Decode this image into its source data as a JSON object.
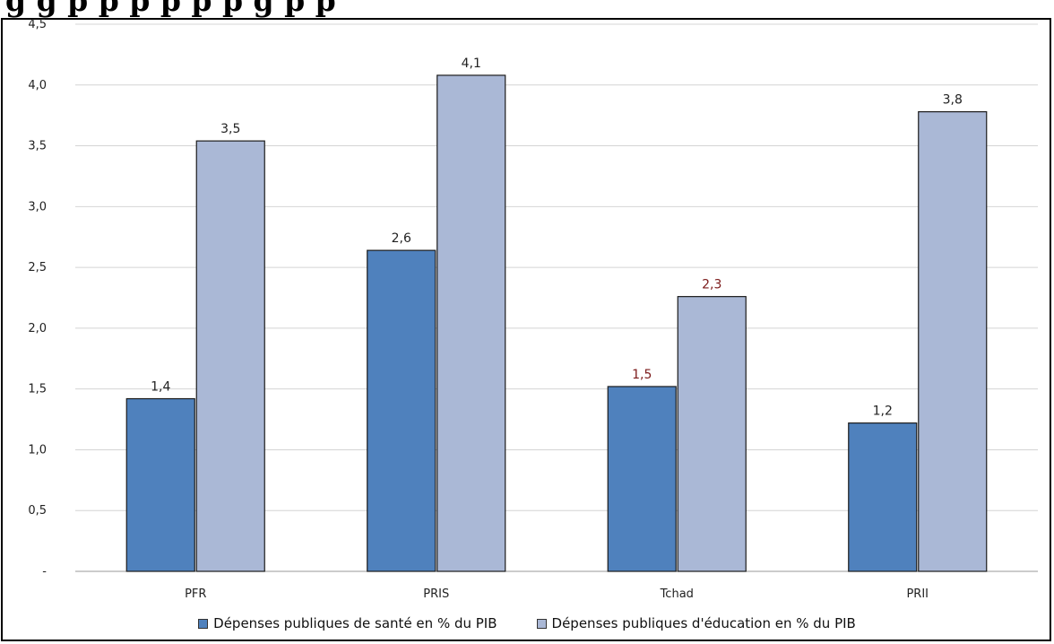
{
  "title": "g g p p p p p p g p p",
  "chart_data": {
    "type": "bar",
    "categories": [
      "PFR",
      "PRIS",
      "Tchad",
      "PRII"
    ],
    "series": [
      {
        "name": "Dépenses publiques de santé en % du PIB",
        "values": [
          1.42,
          2.64,
          1.52,
          1.22
        ],
        "labels": [
          "1,4",
          "2,6",
          "1,5",
          "1,2"
        ],
        "color": "#4f81bd",
        "label_colors": [
          "#222222",
          "#222222",
          "#7b1a1a",
          "#222222"
        ]
      },
      {
        "name": "Dépenses publiques d'éducation en % du PIB",
        "values": [
          3.54,
          4.08,
          2.26,
          3.78
        ],
        "labels": [
          "3,5",
          "4,1",
          "2,3",
          "3,8"
        ],
        "color": "#aab8d6",
        "label_colors": [
          "#222222",
          "#222222",
          "#7b1a1a",
          "#222222"
        ]
      }
    ],
    "yticks": [
      "-",
      "0,5",
      "1,0",
      "1,5",
      "2,0",
      "2,5",
      "3,0",
      "3,5",
      "4,0",
      "4,5"
    ],
    "ylim": [
      0,
      4.5
    ],
    "grid": true,
    "legend_position": "bottom"
  }
}
